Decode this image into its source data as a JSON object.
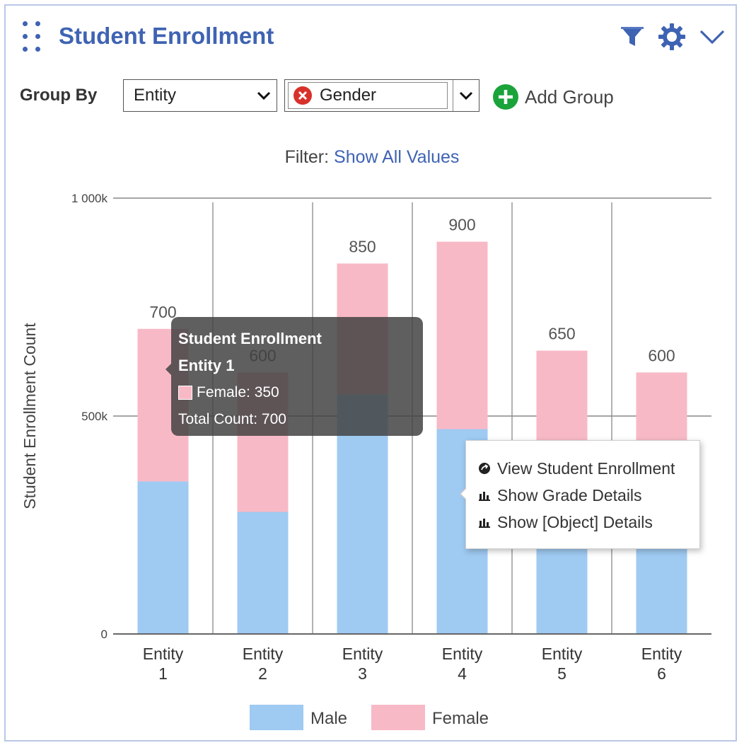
{
  "header": {
    "title": "Student Enrollment",
    "icons": [
      "drag-handle-icon",
      "filter-icon",
      "gear-icon",
      "chevron-down-icon"
    ]
  },
  "toolbar": {
    "group_by_label": "Group By",
    "group_select_1": "Entity",
    "group_select_2": "Gender",
    "add_group_label": "Add Group"
  },
  "filter": {
    "label": "Filter:",
    "value": "Show All Values"
  },
  "colors": {
    "accent": "#3f63b3",
    "male": "#9fcaf2",
    "female": "#f8b9c6",
    "add_green": "#1aa33a",
    "remove_red": "#d8312b"
  },
  "chart_data": {
    "type": "bar",
    "stacked": true,
    "categories": [
      "Entity 1",
      "Entity 2",
      "Entity 3",
      "Entity 4",
      "Entity 5",
      "Entity 6"
    ],
    "series": [
      {
        "name": "Male",
        "values": [
          350,
          280,
          550,
          470,
          370,
          360
        ]
      },
      {
        "name": "Female",
        "values": [
          350,
          320,
          300,
          430,
          280,
          240
        ]
      }
    ],
    "totals": [
      700,
      600,
      850,
      900,
      650,
      600
    ],
    "ylabel": "Student Enrollment Count",
    "xlabel": "",
    "ylim": [
      0,
      1000
    ],
    "yticks": [
      {
        "value": 0,
        "label": "0"
      },
      {
        "value": 500,
        "label": "500k"
      },
      {
        "value": 1000,
        "label": "1 000k"
      }
    ],
    "legend": [
      "Male",
      "Female"
    ],
    "legend_position": "bottom",
    "grid": true
  },
  "tooltip": {
    "title": "Student Enrollment",
    "subtitle": "Entity 1",
    "series_line": "Female: 350",
    "total_line": "Total Count: 700"
  },
  "context_menu": {
    "items": [
      {
        "label": "View Student Enrollment",
        "icon": "open-circle-icon"
      },
      {
        "label": "Show Grade Details",
        "icon": "bar-chart-icon"
      },
      {
        "label": "Show [Object] Details",
        "icon": "bar-chart-icon"
      }
    ]
  }
}
